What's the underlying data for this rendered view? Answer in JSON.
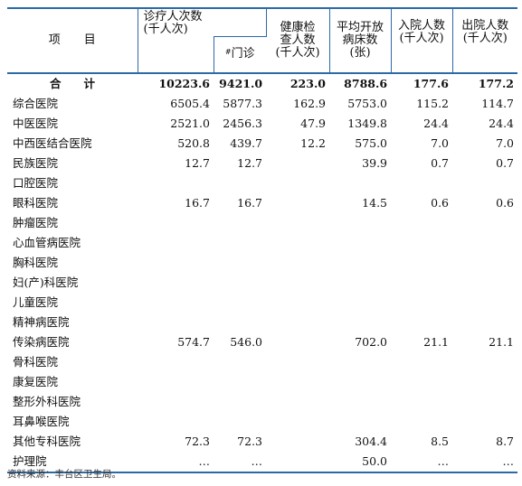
{
  "header": {
    "item": "项　　目",
    "visits": "诊疗人次数\n(千人次)",
    "outpatient_mark": "#",
    "outpatient": "门诊",
    "health_check": "健康检\n查人数\n(千人次)",
    "beds": "平均开放\n病床数\n(张)",
    "admissions": "入院人数\n(千人次)",
    "discharges": "出院人数\n(千人次)"
  },
  "total_row": {
    "label": "合　　计",
    "visits": "10223.6",
    "outpatient": "9421.0",
    "health_check": "223.0",
    "beds": "8788.6",
    "admissions": "177.6",
    "discharges": "177.2"
  },
  "rows": [
    {
      "name": "综合医院",
      "visits": "6505.4",
      "outpatient": "5877.3",
      "health_check": "162.9",
      "beds": "5753.0",
      "admissions": "115.2",
      "discharges": "114.7"
    },
    {
      "name": "中医医院",
      "visits": "2521.0",
      "outpatient": "2456.3",
      "health_check": "47.9",
      "beds": "1349.8",
      "admissions": "24.4",
      "discharges": "24.4"
    },
    {
      "name": "中西医结合医院",
      "visits": "520.8",
      "outpatient": "439.7",
      "health_check": "12.2",
      "beds": "575.0",
      "admissions": "7.0",
      "discharges": "7.0"
    },
    {
      "name": "民族医院",
      "visits": "12.7",
      "outpatient": "12.7",
      "health_check": "",
      "beds": "39.9",
      "admissions": "0.7",
      "discharges": "0.7"
    },
    {
      "name": "口腔医院",
      "visits": "",
      "outpatient": "",
      "health_check": "",
      "beds": "",
      "admissions": "",
      "discharges": ""
    },
    {
      "name": "眼科医院",
      "visits": "16.7",
      "outpatient": "16.7",
      "health_check": "",
      "beds": "14.5",
      "admissions": "0.6",
      "discharges": "0.6"
    },
    {
      "name": "肿瘤医院",
      "visits": "",
      "outpatient": "",
      "health_check": "",
      "beds": "",
      "admissions": "",
      "discharges": ""
    },
    {
      "name": "心血管病医院",
      "visits": "",
      "outpatient": "",
      "health_check": "",
      "beds": "",
      "admissions": "",
      "discharges": ""
    },
    {
      "name": "胸科医院",
      "visits": "",
      "outpatient": "",
      "health_check": "",
      "beds": "",
      "admissions": "",
      "discharges": ""
    },
    {
      "name": "妇(产)科医院",
      "visits": "",
      "outpatient": "",
      "health_check": "",
      "beds": "",
      "admissions": "",
      "discharges": ""
    },
    {
      "name": "儿童医院",
      "visits": "",
      "outpatient": "",
      "health_check": "",
      "beds": "",
      "admissions": "",
      "discharges": ""
    },
    {
      "name": "精神病医院",
      "visits": "",
      "outpatient": "",
      "health_check": "",
      "beds": "",
      "admissions": "",
      "discharges": ""
    },
    {
      "name": "传染病医院",
      "visits": "574.7",
      "outpatient": "546.0",
      "health_check": "",
      "beds": "702.0",
      "admissions": "21.1",
      "discharges": "21.1"
    },
    {
      "name": "骨科医院",
      "visits": "",
      "outpatient": "",
      "health_check": "",
      "beds": "",
      "admissions": "",
      "discharges": ""
    },
    {
      "name": "康复医院",
      "visits": "",
      "outpatient": "",
      "health_check": "",
      "beds": "",
      "admissions": "",
      "discharges": ""
    },
    {
      "name": "整形外科医院",
      "visits": "",
      "outpatient": "",
      "health_check": "",
      "beds": "",
      "admissions": "",
      "discharges": ""
    },
    {
      "name": "耳鼻喉医院",
      "visits": "",
      "outpatient": "",
      "health_check": "",
      "beds": "",
      "admissions": "",
      "discharges": ""
    },
    {
      "name": "其他专科医院",
      "visits": "72.3",
      "outpatient": "72.3",
      "health_check": "",
      "beds": "304.4",
      "admissions": "8.5",
      "discharges": "8.7"
    },
    {
      "name": "护理院",
      "visits": "…",
      "outpatient": "…",
      "health_check": "",
      "beds": "50.0",
      "admissions": "…",
      "discharges": "…"
    }
  ],
  "source": "资料来源：丰台区卫生局。"
}
